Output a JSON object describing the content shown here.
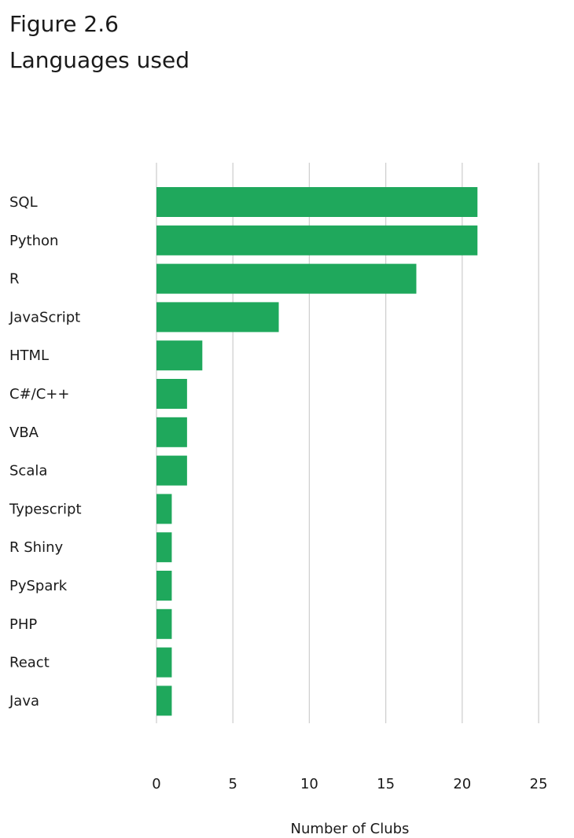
{
  "figure": {
    "number": "Figure 2.6",
    "title": "Languages used"
  },
  "chart_data": {
    "type": "bar",
    "orientation": "horizontal",
    "title": "Languages used",
    "xlabel": "Number of Clubs",
    "ylabel": "",
    "xlim": [
      0,
      25
    ],
    "xticks": [
      0,
      5,
      10,
      15,
      20,
      25
    ],
    "grid": true,
    "bar_color": "#1fa85c",
    "categories": [
      "SQL",
      "Python",
      "R",
      "JavaScript",
      "HTML",
      "C#/C++",
      "VBA",
      "Scala",
      "Typescript",
      "R Shiny",
      "PySpark",
      "PHP",
      "React",
      "Java"
    ],
    "values": [
      21,
      21,
      17,
      8,
      3,
      2,
      2,
      2,
      1,
      1,
      1,
      1,
      1,
      1
    ]
  }
}
